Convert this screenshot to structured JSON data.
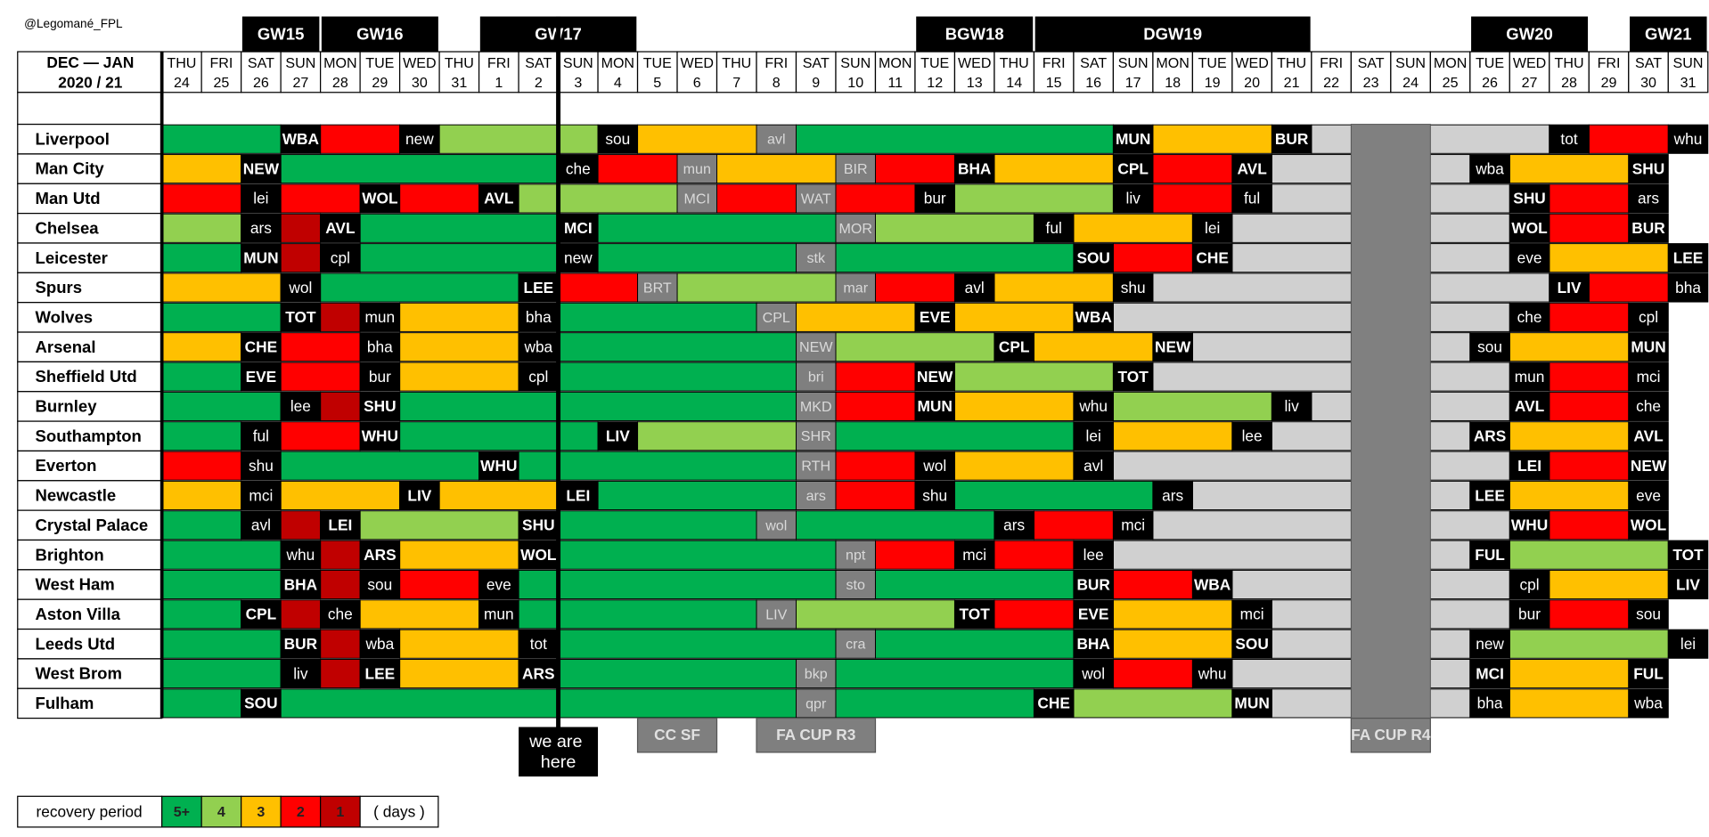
{
  "credit": "@Legomané_FPL",
  "period": {
    "line1": "DEC — JAN",
    "line2": "2020 / 21"
  },
  "days": [
    {
      "dow": "THU",
      "date": "24"
    },
    {
      "dow": "FRI",
      "date": "25"
    },
    {
      "dow": "SAT",
      "date": "26"
    },
    {
      "dow": "SUN",
      "date": "27"
    },
    {
      "dow": "MON",
      "date": "28"
    },
    {
      "dow": "TUE",
      "date": "29"
    },
    {
      "dow": "WED",
      "date": "30"
    },
    {
      "dow": "THU",
      "date": "31"
    },
    {
      "dow": "FRI",
      "date": "1"
    },
    {
      "dow": "SAT",
      "date": "2"
    },
    {
      "dow": "SUN",
      "date": "3"
    },
    {
      "dow": "MON",
      "date": "4"
    },
    {
      "dow": "TUE",
      "date": "5"
    },
    {
      "dow": "WED",
      "date": "6"
    },
    {
      "dow": "THU",
      "date": "7"
    },
    {
      "dow": "FRI",
      "date": "8"
    },
    {
      "dow": "SAT",
      "date": "9"
    },
    {
      "dow": "SUN",
      "date": "10"
    },
    {
      "dow": "MON",
      "date": "11"
    },
    {
      "dow": "TUE",
      "date": "12"
    },
    {
      "dow": "WED",
      "date": "13"
    },
    {
      "dow": "THU",
      "date": "14"
    },
    {
      "dow": "FRI",
      "date": "15"
    },
    {
      "dow": "SAT",
      "date": "16"
    },
    {
      "dow": "SUN",
      "date": "17"
    },
    {
      "dow": "MON",
      "date": "18"
    },
    {
      "dow": "TUE",
      "date": "19"
    },
    {
      "dow": "WED",
      "date": "20"
    },
    {
      "dow": "THU",
      "date": "21"
    },
    {
      "dow": "FRI",
      "date": "22"
    },
    {
      "dow": "SAT",
      "date": "23"
    },
    {
      "dow": "SUN",
      "date": "24"
    },
    {
      "dow": "MON",
      "date": "25"
    },
    {
      "dow": "TUE",
      "date": "26"
    },
    {
      "dow": "WED",
      "date": "27"
    },
    {
      "dow": "THU",
      "date": "28"
    },
    {
      "dow": "FRI",
      "date": "29"
    },
    {
      "dow": "SAT",
      "date": "30"
    },
    {
      "dow": "SUN",
      "date": "31"
    }
  ],
  "gameweeks": [
    {
      "label": "GW15",
      "first": 2,
      "last": 3
    },
    {
      "label": "GW16",
      "first": 4,
      "last": 6
    },
    {
      "label": "GW17",
      "first": 8,
      "last": 11
    },
    {
      "label": "BGW18",
      "first": 19,
      "last": 21
    },
    {
      "label": "DGW19",
      "first": 22,
      "last": 28
    },
    {
      "label": "GW20",
      "first": 33,
      "last": 35
    },
    {
      "label": "GW21",
      "first": 37,
      "last": 38
    }
  ],
  "we_are_here": {
    "label": "we are here",
    "before": 10
  },
  "cup_rounds": [
    {
      "label": "CC SF",
      "first": 12,
      "last": 13
    },
    {
      "label": "FA CUP R3",
      "first": 15,
      "last": 17
    },
    {
      "label": "FA CUP R4",
      "first": 30,
      "last": 31,
      "blank_color": "#808080"
    }
  ],
  "unscheduled_color": "#d0d0d0",
  "legend": {
    "title": "recovery period",
    "unit": "( days )",
    "levels": [
      {
        "label": "5+",
        "color": "#00b050"
      },
      {
        "label": "4",
        "color": "#92d050"
      },
      {
        "label": "3",
        "color": "#ffc000"
      },
      {
        "label": "2",
        "color": "#ff0000"
      },
      {
        "label": "1",
        "color": "#c00000"
      }
    ]
  },
  "teams": [
    {
      "name": "Liverpool",
      "lead": "5+",
      "fixtures": [
        null,
        null,
        null,
        "WBA",
        null,
        null,
        "new",
        null,
        null,
        null,
        null,
        "sou",
        null,
        null,
        null,
        "avl",
        null,
        null,
        null,
        null,
        null,
        null,
        null,
        null,
        "MUN",
        null,
        null,
        null,
        "BUR",
        null,
        null,
        null,
        null,
        null,
        null,
        "tot",
        null,
        null,
        "whu"
      ]
    },
    {
      "name": "Man City",
      "lead": "3",
      "fixtures": [
        null,
        null,
        "NEW",
        null,
        null,
        null,
        null,
        null,
        null,
        null,
        "che",
        null,
        null,
        "mun",
        null,
        null,
        null,
        "BIR",
        null,
        null,
        "BHA",
        null,
        null,
        null,
        "CPL",
        null,
        null,
        "AVL",
        null,
        null,
        null,
        null,
        null,
        "wba",
        null,
        null,
        null,
        "SHU",
        null
      ]
    },
    {
      "name": "Man Utd",
      "lead": "2",
      "fixtures": [
        null,
        null,
        "lei",
        null,
        null,
        "WOL",
        null,
        null,
        "AVL",
        null,
        null,
        null,
        null,
        "MCI",
        null,
        null,
        "WAT",
        null,
        null,
        "bur",
        null,
        null,
        null,
        null,
        "liv",
        null,
        null,
        "ful",
        null,
        null,
        null,
        null,
        null,
        null,
        "SHU",
        null,
        null,
        "ars",
        null
      ]
    },
    {
      "name": "Chelsea",
      "lead": "4",
      "fixtures": [
        null,
        null,
        "ars",
        null,
        "AVL",
        null,
        null,
        null,
        null,
        null,
        "MCI",
        null,
        null,
        null,
        null,
        null,
        null,
        "MOR",
        null,
        null,
        null,
        null,
        "ful",
        null,
        null,
        null,
        "lei",
        null,
        null,
        null,
        null,
        null,
        null,
        null,
        "WOL",
        null,
        null,
        "BUR",
        null
      ]
    },
    {
      "name": "Leicester",
      "lead": "5+",
      "fixtures": [
        null,
        null,
        "MUN",
        null,
        "cpl",
        null,
        null,
        null,
        null,
        null,
        "new",
        null,
        null,
        null,
        null,
        null,
        "stk",
        null,
        null,
        null,
        null,
        null,
        null,
        "SOU",
        null,
        null,
        "CHE",
        null,
        null,
        null,
        null,
        null,
        null,
        null,
        "eve",
        null,
        null,
        null,
        "LEE"
      ]
    },
    {
      "name": "Spurs",
      "lead": "3",
      "fixtures": [
        null,
        null,
        null,
        "wol",
        null,
        null,
        null,
        null,
        null,
        "LEE",
        null,
        null,
        "BRT",
        null,
        null,
        null,
        null,
        "mar",
        null,
        null,
        "avl",
        null,
        null,
        null,
        "shu",
        null,
        null,
        null,
        null,
        null,
        null,
        null,
        null,
        null,
        null,
        "LIV",
        null,
        null,
        "bha"
      ]
    },
    {
      "name": "Wolves",
      "lead": "5+",
      "fixtures": [
        null,
        null,
        null,
        "TOT",
        null,
        "mun",
        null,
        null,
        null,
        "bha",
        null,
        null,
        null,
        null,
        null,
        "CPL",
        null,
        null,
        null,
        "EVE",
        null,
        null,
        null,
        "WBA",
        null,
        null,
        null,
        null,
        null,
        null,
        null,
        null,
        null,
        null,
        "che",
        null,
        null,
        "cpl",
        null
      ]
    },
    {
      "name": "Arsenal",
      "lead": "3",
      "fixtures": [
        null,
        null,
        "CHE",
        null,
        null,
        "bha",
        null,
        null,
        null,
        "wba",
        null,
        null,
        null,
        null,
        null,
        null,
        "NEW",
        null,
        null,
        null,
        null,
        "CPL",
        null,
        null,
        null,
        "NEW",
        null,
        null,
        null,
        null,
        null,
        null,
        null,
        "sou",
        null,
        null,
        null,
        "MUN",
        null
      ]
    },
    {
      "name": "Sheffield Utd",
      "lead": "5+",
      "fixtures": [
        null,
        null,
        "EVE",
        null,
        null,
        "bur",
        null,
        null,
        null,
        "cpl",
        null,
        null,
        null,
        null,
        null,
        null,
        "bri",
        null,
        null,
        "NEW",
        null,
        null,
        null,
        null,
        "TOT",
        null,
        null,
        null,
        null,
        null,
        null,
        null,
        null,
        null,
        "mun",
        null,
        null,
        "mci",
        null
      ]
    },
    {
      "name": "Burnley",
      "lead": "5+",
      "fixtures": [
        null,
        null,
        null,
        "lee",
        null,
        "SHU",
        null,
        null,
        null,
        null,
        null,
        null,
        null,
        null,
        null,
        null,
        "MKD",
        null,
        null,
        "MUN",
        null,
        null,
        null,
        "whu",
        null,
        null,
        null,
        null,
        "liv",
        null,
        null,
        null,
        null,
        null,
        "AVL",
        null,
        null,
        "che",
        null
      ]
    },
    {
      "name": "Southampton",
      "lead": "5+",
      "fixtures": [
        null,
        null,
        "ful",
        null,
        null,
        "WHU",
        null,
        null,
        null,
        null,
        null,
        "LIV",
        null,
        null,
        null,
        null,
        "SHR",
        null,
        null,
        null,
        null,
        null,
        null,
        "lei",
        null,
        null,
        null,
        "lee",
        null,
        null,
        null,
        null,
        null,
        "ARS",
        null,
        null,
        null,
        "AVL",
        null
      ]
    },
    {
      "name": "Everton",
      "lead": "2",
      "fixtures": [
        null,
        null,
        "shu",
        null,
        null,
        null,
        null,
        null,
        "WHU",
        null,
        null,
        null,
        null,
        null,
        null,
        null,
        "RTH",
        null,
        null,
        "wol",
        null,
        null,
        null,
        "avl",
        null,
        null,
        null,
        null,
        null,
        null,
        null,
        null,
        null,
        null,
        "LEI",
        null,
        null,
        "NEW",
        null
      ]
    },
    {
      "name": "Newcastle",
      "lead": "3",
      "fixtures": [
        null,
        null,
        "mci",
        null,
        null,
        null,
        "LIV",
        null,
        null,
        null,
        "LEI",
        null,
        null,
        null,
        null,
        null,
        "ars",
        null,
        null,
        "shu",
        null,
        null,
        null,
        null,
        null,
        "ars",
        null,
        null,
        null,
        null,
        null,
        null,
        null,
        "LEE",
        null,
        null,
        null,
        "eve",
        null
      ]
    },
    {
      "name": "Crystal Palace",
      "lead": "5+",
      "fixtures": [
        null,
        null,
        "avl",
        null,
        "LEI",
        null,
        null,
        null,
        null,
        "SHU",
        null,
        null,
        null,
        null,
        null,
        "wol",
        null,
        null,
        null,
        null,
        null,
        "ars",
        null,
        null,
        "mci",
        null,
        null,
        null,
        null,
        null,
        null,
        null,
        null,
        null,
        "WHU",
        null,
        null,
        "WOL",
        null
      ]
    },
    {
      "name": "Brighton",
      "lead": "5+",
      "fixtures": [
        null,
        null,
        null,
        "whu",
        null,
        "ARS",
        null,
        null,
        null,
        "WOL",
        null,
        null,
        null,
        null,
        null,
        null,
        null,
        "npt",
        null,
        null,
        "mci",
        null,
        null,
        "lee",
        null,
        null,
        null,
        null,
        null,
        null,
        null,
        null,
        null,
        "FUL",
        null,
        null,
        null,
        null,
        "TOT"
      ]
    },
    {
      "name": "West Ham",
      "lead": "5+",
      "fixtures": [
        null,
        null,
        null,
        "BHA",
        null,
        "sou",
        null,
        null,
        "eve",
        null,
        null,
        null,
        null,
        null,
        null,
        null,
        null,
        "sto",
        null,
        null,
        null,
        null,
        null,
        "BUR",
        null,
        null,
        "WBA",
        null,
        null,
        null,
        null,
        null,
        null,
        null,
        "cpl",
        null,
        null,
        null,
        "LIV"
      ]
    },
    {
      "name": "Aston Villa",
      "lead": "5+",
      "fixtures": [
        null,
        null,
        "CPL",
        null,
        "che",
        null,
        null,
        null,
        "mun",
        null,
        null,
        null,
        null,
        null,
        null,
        "LIV",
        null,
        null,
        null,
        null,
        "TOT",
        null,
        null,
        "EVE",
        null,
        null,
        null,
        "mci",
        null,
        null,
        null,
        null,
        null,
        null,
        "bur",
        null,
        null,
        "sou",
        null
      ]
    },
    {
      "name": "Leeds Utd",
      "lead": "5+",
      "fixtures": [
        null,
        null,
        null,
        "BUR",
        null,
        "wba",
        null,
        null,
        null,
        "tot",
        null,
        null,
        null,
        null,
        null,
        null,
        null,
        "cra",
        null,
        null,
        null,
        null,
        null,
        "BHA",
        null,
        null,
        null,
        "SOU",
        null,
        null,
        null,
        null,
        null,
        "new",
        null,
        null,
        null,
        null,
        "lei"
      ]
    },
    {
      "name": "West Brom",
      "lead": "5+",
      "fixtures": [
        null,
        null,
        null,
        "liv",
        null,
        "LEE",
        null,
        null,
        null,
        "ARS",
        null,
        null,
        null,
        null,
        null,
        null,
        "bkp",
        null,
        null,
        null,
        null,
        null,
        null,
        "wol",
        null,
        null,
        "whu",
        null,
        null,
        null,
        null,
        null,
        null,
        "MCI",
        null,
        null,
        null,
        "FUL",
        null
      ]
    },
    {
      "name": "Fulham",
      "lead": "5+",
      "fixtures": [
        null,
        null,
        "SOU",
        null,
        null,
        null,
        null,
        null,
        null,
        null,
        null,
        null,
        null,
        null,
        null,
        null,
        "qpr",
        null,
        null,
        null,
        null,
        null,
        "CHE",
        null,
        null,
        null,
        null,
        "MUN",
        null,
        null,
        null,
        null,
        null,
        "bha",
        null,
        null,
        null,
        "wba",
        null
      ]
    }
  ]
}
